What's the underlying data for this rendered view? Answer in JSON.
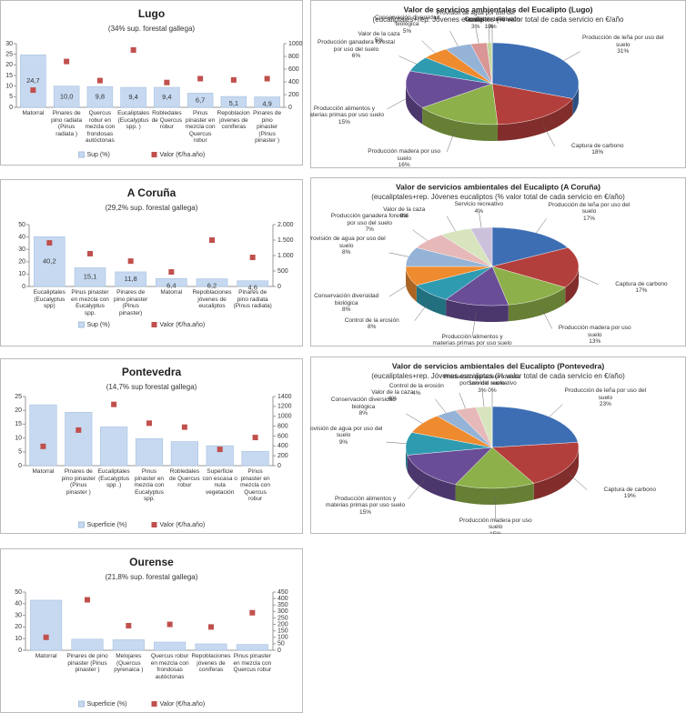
{
  "chart_data": [
    {
      "type": "bar",
      "title": "Lugo",
      "subtitle": "(34% sup. forestal gallega)",
      "categories": [
        "Matorral",
        "Pinares de pino radiata (Pinus radiata )",
        "Quercus robur en mezcla con frondosas autóctonas",
        "Eucaliptales (Eucalyptus spp. )",
        "Robledales de Quercus robur",
        "Pinus pinaster en mezcla con Quercus robur",
        "Repoblaciones jóvenes de coníferas",
        "Pinares de pino pinaster (Pinus pinaster )"
      ],
      "series": [
        {
          "name": "Sup (%)",
          "color": "#c6d9f1",
          "values": [
            24.7,
            10.0,
            9.8,
            9.4,
            9.4,
            6.7,
            5.1,
            4.9
          ],
          "value_labels": [
            "24,7",
            "10,0",
            "9,8",
            "9,4",
            "9,4",
            "6,7",
            "5,1",
            "4,9"
          ]
        },
        {
          "name": "Valor (€/ha.año)",
          "color": "#c0504d",
          "axis": "y2",
          "values": [
            270,
            720,
            420,
            900,
            390,
            450,
            430,
            450
          ]
        }
      ],
      "ylim": [
        0,
        30
      ],
      "yticks": [
        0,
        5,
        10,
        15,
        20,
        25,
        30
      ],
      "y2lim": [
        0,
        1000
      ],
      "y2ticks": [
        0,
        200,
        400,
        600,
        800,
        1000
      ]
    },
    {
      "type": "pie",
      "title": "Valor de servicios ambientales del Eucalipto (Lugo)",
      "subtitle": "(eucaliptales+rep. Jóvenes eucaliptos (% valor total de cada servicio en €/año",
      "categories": [
        "Producción de leña por uso del suelo",
        "Captura de carbono",
        "Producción madera por uso suelo",
        "Producción alimentos y materias primas por uso suelo",
        "Producción ganadera forestal por uso del suelo",
        "Valor de la caza",
        "Conservación diversidad biológica",
        "Provisión de agua por uso del suelo",
        "Servicio recreativo",
        "Control de la erosión"
      ],
      "values": [
        31,
        18,
        16,
        15,
        6,
        5,
        5,
        3,
        1,
        0
      ],
      "value_labels": [
        "31%",
        "18%",
        "16%",
        "15%",
        "6%",
        "5%",
        "5%",
        "3%",
        "1%",
        "0%"
      ],
      "colors": [
        "#3d6eb4",
        "#b33f3c",
        "#8db04a",
        "#6a4d97",
        "#2f9bb1",
        "#ef8b2f",
        "#95b3d7",
        "#d99694",
        "#c3d69b",
        "#b3a2c7"
      ]
    },
    {
      "type": "bar",
      "title": "A Coruña",
      "subtitle": "(29,2% sup. forestal gallega)",
      "categories": [
        "Eucaliptales (Eucalyptus spp)",
        "Pinus pinaster en mezcla con Eucalyptus spp.",
        "Pinares de pino pinaster (Pinus pinaster)",
        "Matorral",
        "Repoblaciones jóvenes de eucaliptos",
        "Pinares de pino radiata (Pinus radiata)"
      ],
      "series": [
        {
          "name": "Sup (%)",
          "color": "#c6d9f1",
          "values": [
            40.2,
            15.1,
            11.8,
            6.4,
            6.2,
            4.6
          ],
          "value_labels": [
            "40,2",
            "15,1",
            "11,8",
            "6,4",
            "6,2",
            "4,6"
          ]
        },
        {
          "name": "Valor (€/ha.año)",
          "color": "#c0504d",
          "axis": "y2",
          "values": [
            1410,
            1060,
            820,
            470,
            1500,
            940
          ]
        }
      ],
      "ylim": [
        0,
        50
      ],
      "yticks": [
        0,
        10,
        20,
        30,
        40,
        50
      ],
      "y2lim": [
        0,
        2000
      ],
      "y2ticks": [
        0,
        500,
        {
          "value": 1000,
          "label": "1.000"
        },
        {
          "value": 1500,
          "label": "1.500"
        },
        {
          "value": 2000,
          "label": "2.000"
        }
      ]
    },
    {
      "type": "pie",
      "title": "Valor de servicios ambientales del Eucalipto (A Coruña)",
      "subtitle": "(eucaliptales+rep. Jóvenes eucaliptos (% valor total de cada servicio en €/año)",
      "categories": [
        "Producción de leña por uso del suelo",
        "Captura de carbono",
        "Producción madera por uso suelo",
        "Producción alimentos y materias primas por uso suelo",
        "Control de la erosión",
        "Conservación diversidad biológica",
        "Provisión de agua por uso del suelo",
        "Producción ganadera forestal por uso del suelo",
        "Valor de la caza",
        "Servicio recreativo"
      ],
      "values": [
        17,
        17,
        13,
        12,
        8,
        8,
        8,
        7,
        6,
        4
      ],
      "value_labels": [
        "17%",
        "17%",
        "13%",
        "12%",
        "8%",
        "8%",
        "8%",
        "7%",
        "6%",
        "4%"
      ],
      "colors": [
        "#3d6eb4",
        "#b33f3c",
        "#8db04a",
        "#6a4d97",
        "#2f9bb1",
        "#ef8b2f",
        "#95b3d7",
        "#e6b9b8",
        "#d7e4bd",
        "#ccc1da"
      ]
    },
    {
      "type": "bar",
      "title": "Pontevedra",
      "subtitle": "(14,7% sup forestal gallega)",
      "categories": [
        "Matorral",
        "Pinares de pino pinaster (Pinus pinaster )",
        "Eucaliptales (Eucalyptus spp .)",
        "Pinus pinaster en mezcla con Eucalyptus spp.",
        "Robledales de Quercus robur",
        "Superficie con escasa o nula vegetación",
        "Pinus pinaster en mezcla con Quercus robur"
      ],
      "series": [
        {
          "name": "Superficie (%)",
          "color": "#c6d9f1",
          "values": [
            22,
            19.3,
            14,
            9.8,
            8.7,
            7.2,
            5.2
          ]
        },
        {
          "name": "Valor (€/ha.año)",
          "color": "#c0504d",
          "axis": "y2",
          "values": [
            390,
            720,
            1240,
            860,
            780,
            330,
            570
          ]
        }
      ],
      "ylim": [
        0,
        25
      ],
      "yticks": [
        0,
        5,
        10,
        15,
        20,
        25
      ],
      "y2lim": [
        0,
        1400
      ],
      "y2ticks": [
        0,
        200,
        400,
        600,
        800,
        1000,
        1200,
        1400
      ]
    },
    {
      "type": "pie",
      "title": "Valor de servicios ambientales del Eucalipto (Pontevedra)",
      "subtitle": "(eucaliptales+rep. Jóvenes eucaliptos (% valor total de cada servicio en €/año)",
      "categories": [
        "Producción de leña por uso del suelo",
        "Captura de carbono",
        "Producción madera por uso suelo",
        "Producción alimentos y materias primas por uso suelo",
        "Provisión de agua por uso del suelo",
        "Conservación diversidad biológica",
        "Valor de la caza",
        "Control de la erosión",
        "Producción ganadera forestal por uso del suelo",
        "Servicio recreativo"
      ],
      "values": [
        23,
        19,
        15,
        15,
        9,
        8,
        4,
        4,
        3,
        0
      ],
      "value_labels": [
        "23%",
        "19%",
        "15%",
        "15%",
        "9%",
        "8%",
        "4%",
        "4%",
        "3%",
        "0%"
      ],
      "colors": [
        "#3d6eb4",
        "#b33f3c",
        "#8db04a",
        "#6a4d97",
        "#2f9bb1",
        "#ef8b2f",
        "#95b3d7",
        "#e6b9b8",
        "#d7e4bd",
        "#ccc1da"
      ]
    },
    {
      "type": "bar",
      "title": "Ourense",
      "subtitle": "(21,8% sup. forestal gallega)",
      "categories": [
        "Matorral",
        "Pinares de pino pinaster (Pinus pinaster )",
        "Melojares (Quercus pyrenaica )",
        "Quercus robur en mezcla con frondosas autóctonas",
        "Repoblaciones jóvenes de coníferas",
        "Pinus pinaster en mezcla con Quercus robur"
      ],
      "series": [
        {
          "name": "Superficie (%)",
          "color": "#c6d9f1",
          "values": [
            43,
            9.5,
            9,
            7,
            5.5,
            5
          ]
        },
        {
          "name": "Valor (€/ha.año)",
          "color": "#c0504d",
          "axis": "y2",
          "values": [
            100,
            390,
            190,
            200,
            180,
            290
          ]
        }
      ],
      "ylim": [
        0,
        50
      ],
      "yticks": [
        0,
        10,
        20,
        30,
        40,
        50
      ],
      "y2lim": [
        0,
        450
      ],
      "y2ticks": [
        0,
        50,
        100,
        150,
        200,
        250,
        300,
        350,
        400,
        450
      ]
    }
  ]
}
